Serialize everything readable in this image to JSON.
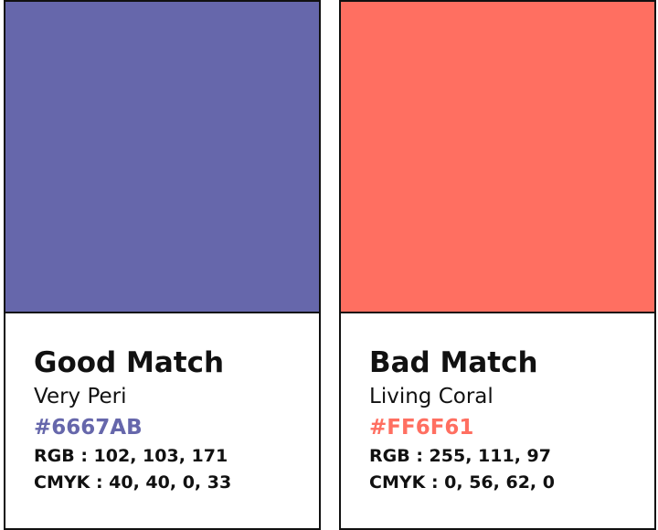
{
  "cards": [
    {
      "title": "Good Match",
      "name": "Very Peri",
      "hex": "#6667AB",
      "rgb": "RGB : 102, 103, 171",
      "cmyk": "CMYK : 40, 40, 0, 33"
    },
    {
      "title": "Bad Match",
      "name": "Living Coral",
      "hex": "#FF6F61",
      "rgb": "RGB : 255, 111, 97",
      "cmyk": "CMYK : 0, 56, 62, 0"
    }
  ]
}
